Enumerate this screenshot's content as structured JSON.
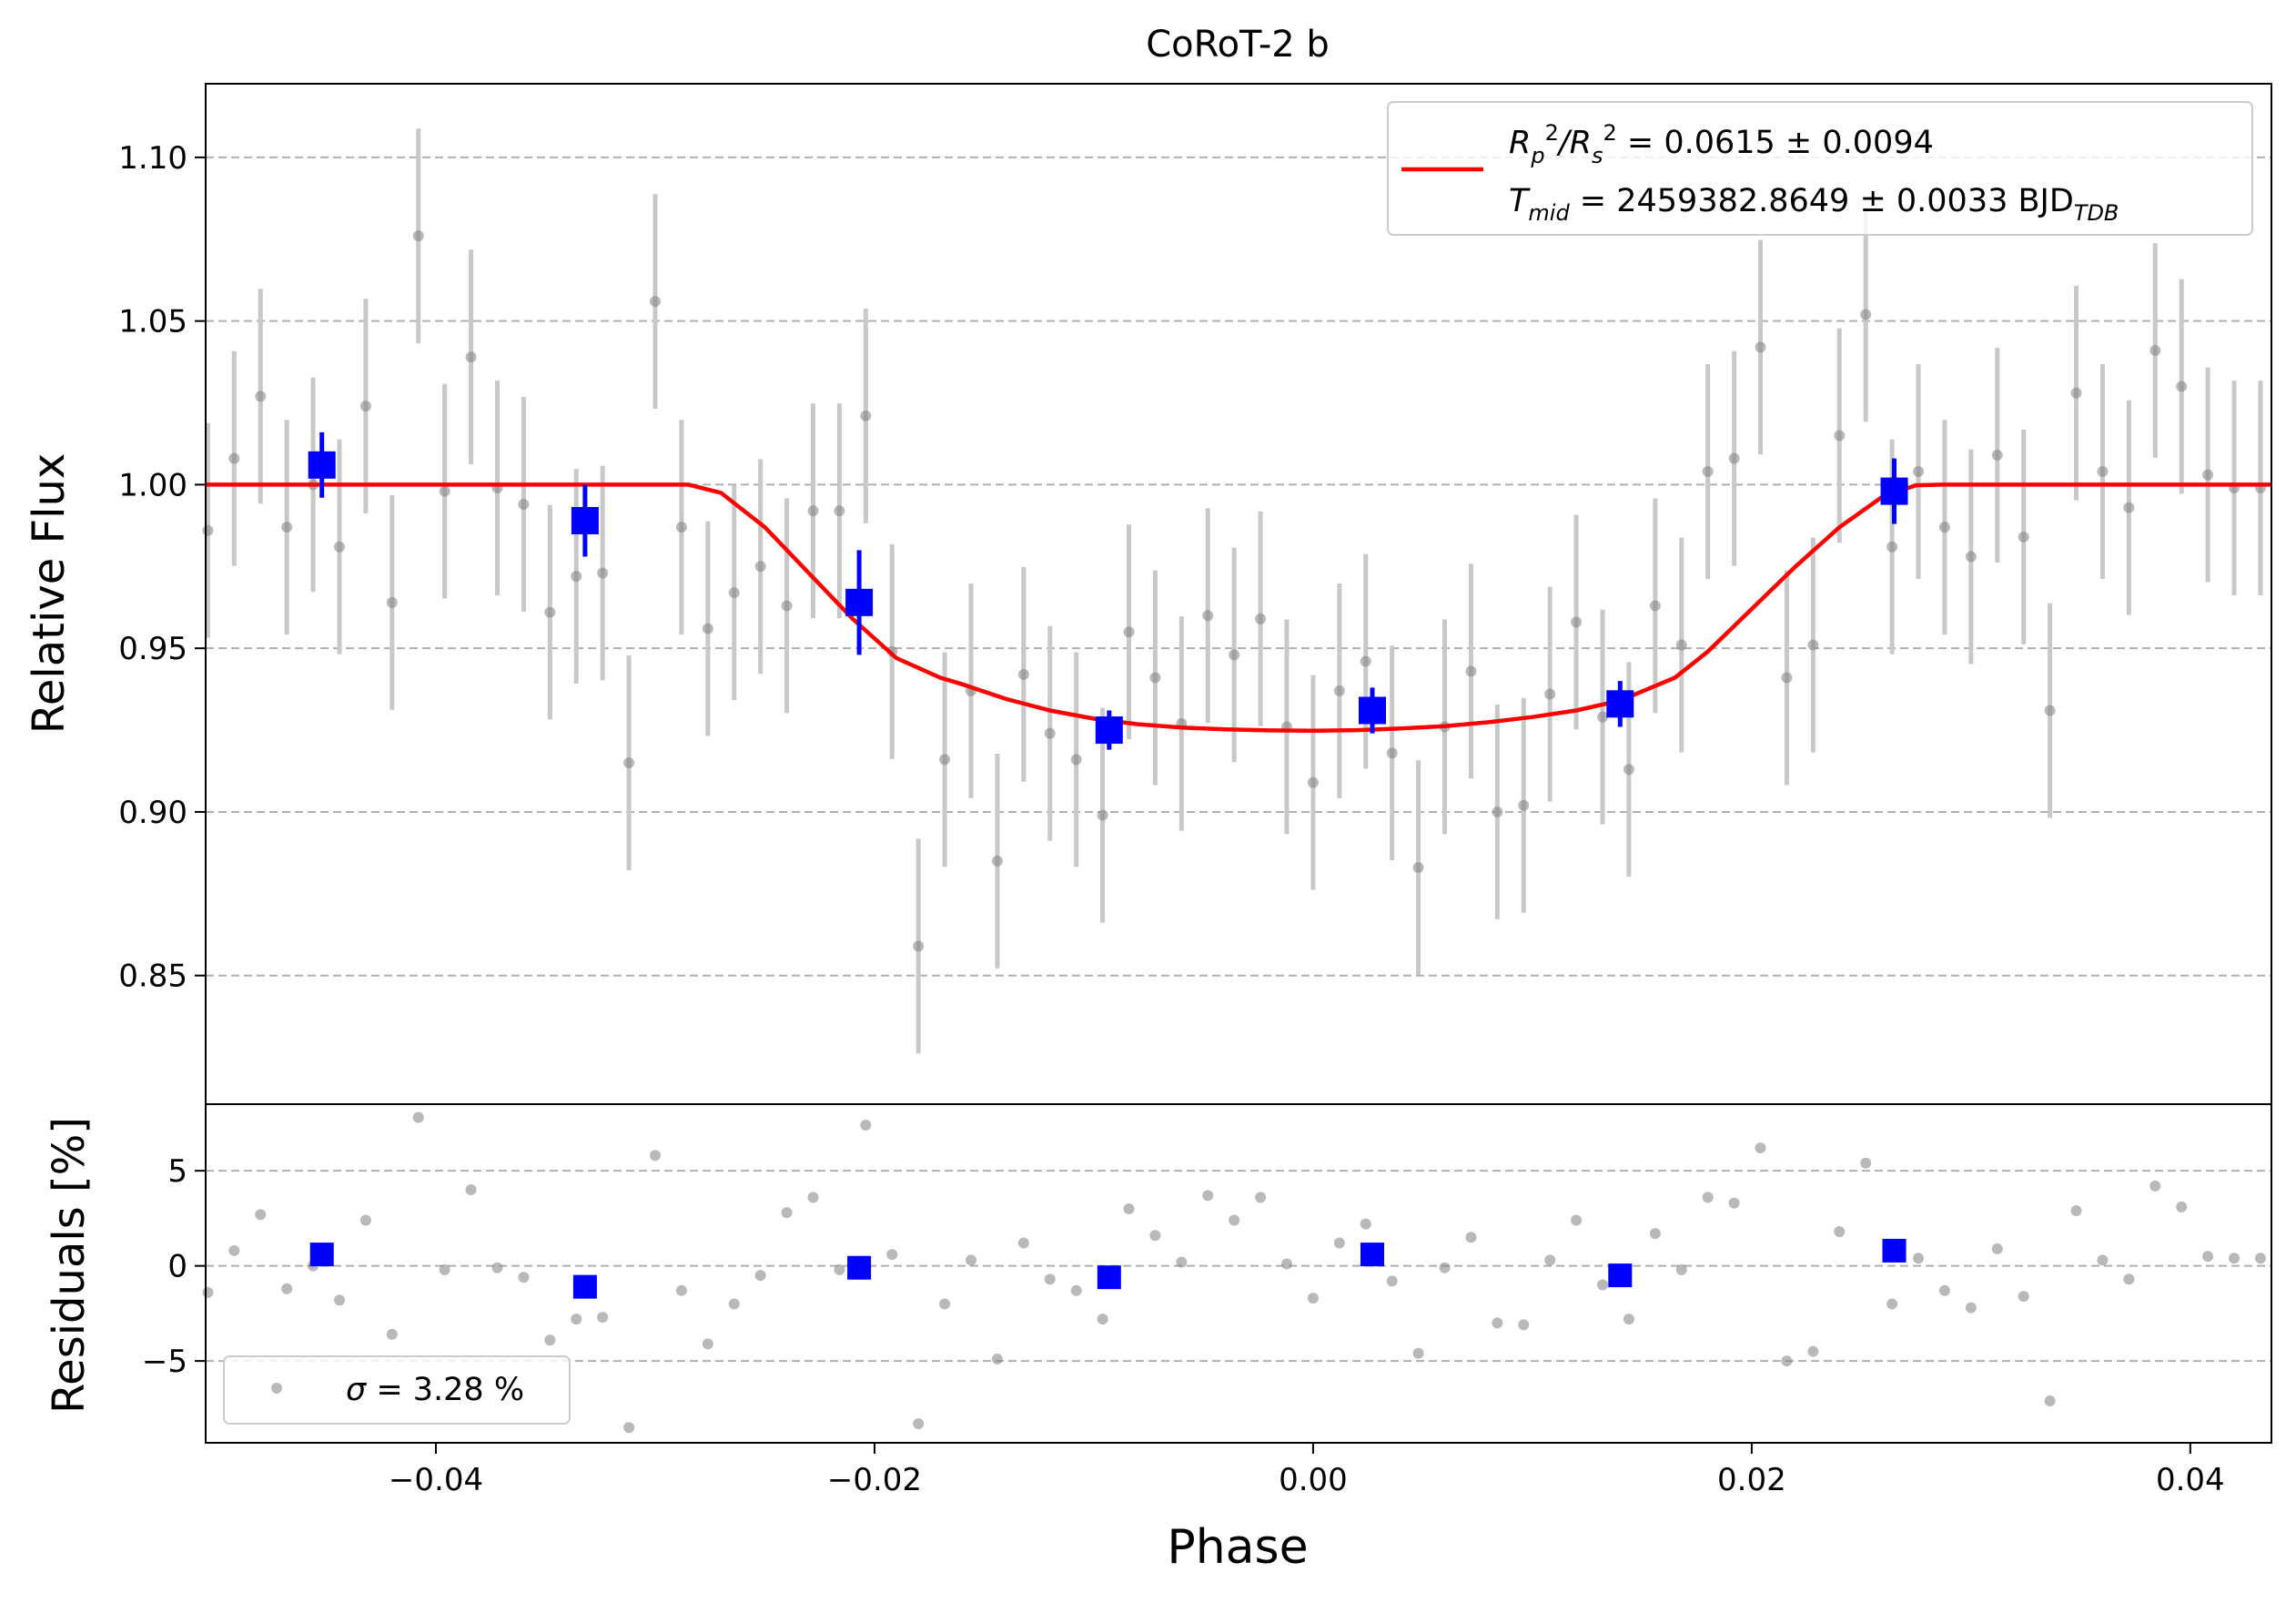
{
  "chart_data": [
    {
      "panel": "main",
      "type": "scatter",
      "title": "CoRoT-2 b",
      "xlabel": "",
      "ylabel": "Relative Flux",
      "xlim": [
        -0.0505,
        0.0437
      ],
      "ylim": [
        0.8107,
        1.1225
      ],
      "yticks": [
        0.85,
        0.9,
        0.95,
        1.0,
        1.05,
        1.1
      ],
      "ytick_labels": [
        "0.85",
        "0.90",
        "0.95",
        "1.00",
        "1.05",
        "1.10"
      ],
      "grid": "y-dashed",
      "legend": {
        "placement": "upper right",
        "line1": {
          "prefix": "R",
          "p_sub": "p",
          "p_sup": "2",
          "slash": "/R",
          "s_sub": "s",
          "s_sup": "2",
          "value": " = 0.0615 ± 0.0094"
        },
        "line2": {
          "prefix": "T",
          "sub": "mid",
          "value": " = 2459382.8649 ± 0.0033 BJD",
          "unit_sub": "TDB"
        }
      },
      "model": {
        "name": "transit model",
        "color": "#ff0000",
        "x": [
          -0.0505,
          -0.0285,
          -0.027,
          -0.025,
          -0.023,
          -0.021,
          -0.019,
          -0.017,
          -0.016,
          -0.014,
          -0.012,
          -0.01,
          -0.008,
          -0.006,
          -0.004,
          -0.002,
          0.0,
          0.002,
          0.004,
          0.006,
          0.008,
          0.01,
          0.012,
          0.014,
          0.0165,
          0.018,
          0.02,
          0.022,
          0.024,
          0.026,
          0.0275,
          0.0287,
          0.0437
        ],
        "y": [
          1.0,
          1.0,
          0.9975,
          0.987,
          0.973,
          0.959,
          0.947,
          0.941,
          0.939,
          0.9345,
          0.931,
          0.9285,
          0.9268,
          0.9258,
          0.9252,
          0.9249,
          0.9248,
          0.925,
          0.9255,
          0.9262,
          0.9274,
          0.929,
          0.931,
          0.934,
          0.941,
          0.949,
          0.962,
          0.975,
          0.987,
          0.9965,
          0.9998,
          1.0,
          1.0
        ]
      },
      "data_series": {
        "name": "data",
        "color": "#808080",
        "x": [
          -0.0504,
          -0.0492,
          -0.048,
          -0.0468,
          -0.0456,
          -0.0444,
          -0.0432,
          -0.042,
          -0.0408,
          -0.0396,
          -0.0384,
          -0.0372,
          -0.036,
          -0.0348,
          -0.0336,
          -0.0324,
          -0.0312,
          -0.03,
          -0.0288,
          -0.0276,
          -0.0264,
          -0.0252,
          -0.024,
          -0.0228,
          -0.0216,
          -0.0204,
          -0.0192,
          -0.018,
          -0.0168,
          -0.0156,
          -0.0144,
          -0.0132,
          -0.012,
          -0.0108,
          -0.0096,
          -0.0084,
          -0.0072,
          -0.006,
          -0.0048,
          -0.0036,
          -0.0024,
          -0.0012,
          0.0,
          0.0012,
          0.0024,
          0.0036,
          0.0048,
          0.006,
          0.0072,
          0.0084,
          0.0096,
          0.0108,
          0.012,
          0.0132,
          0.0144,
          0.0156,
          0.0168,
          0.018,
          0.0192,
          0.0204,
          0.0216,
          0.0228,
          0.024,
          0.0252,
          0.0264,
          0.0276,
          0.0288,
          0.03,
          0.0312,
          0.0324,
          0.0336,
          0.0348,
          0.036,
          0.0372,
          0.0384,
          0.0396,
          0.0408,
          0.042,
          0.0432
        ],
        "y": [
          0.986,
          1.008,
          1.027,
          0.987,
          1.0,
          0.981,
          1.024,
          0.964,
          1.076,
          0.998,
          1.039,
          0.999,
          0.994,
          0.961,
          0.972,
          0.973,
          0.915,
          1.056,
          0.987,
          0.956,
          0.967,
          0.975,
          0.963,
          0.992,
          0.992,
          1.021,
          0.949,
          0.859,
          0.916,
          0.937,
          0.885,
          0.942,
          0.924,
          0.916,
          0.899,
          0.955,
          0.941,
          0.927,
          0.96,
          0.948,
          0.959,
          0.926,
          0.909,
          0.937,
          0.946,
          0.918,
          0.883,
          0.926,
          0.943,
          0.9,
          0.902,
          0.936,
          0.958,
          0.929,
          0.913,
          0.963,
          0.951,
          1.004,
          1.008,
          1.042,
          0.941,
          0.951,
          1.015,
          1.052,
          0.981,
          1.004,
          0.987,
          0.978,
          1.009,
          0.984,
          0.931,
          1.028,
          1.004,
          0.993,
          1.041,
          1.03,
          1.003,
          0.999,
          0.999
        ],
        "yerr": 0.0328
      },
      "binned_series": {
        "name": "binned",
        "color": "#0000ff",
        "x": [
          -0.0452,
          -0.0332,
          -0.0207,
          -0.0093,
          0.0027,
          0.014,
          0.0265
        ],
        "y": [
          1.006,
          0.989,
          0.964,
          0.925,
          0.931,
          0.933,
          0.998
        ],
        "yerr": [
          0.01,
          0.011,
          0.016,
          0.006,
          0.007,
          0.007,
          0.01
        ]
      }
    },
    {
      "panel": "residuals",
      "type": "scatter",
      "xlabel": "Phase",
      "ylabel": "Residuals [%]",
      "xlim": [
        -0.0505,
        0.0437
      ],
      "ylim": [
        -9.3,
        8.5
      ],
      "yticks": [
        -5,
        0,
        5
      ],
      "ytick_labels": [
        "−5",
        "0",
        "5"
      ],
      "xticks": [
        -0.04,
        -0.02,
        0.0,
        0.02,
        0.04
      ],
      "xtick_labels": [
        "−0.04",
        "−0.02",
        "0.00",
        "0.02",
        "0.04"
      ],
      "grid": "y-dashed",
      "legend": {
        "placement": "lower left",
        "label_symbol": "σ",
        "label_value": " = 3.28 %"
      },
      "data_series": {
        "name": "residuals",
        "color": "#808080",
        "x": [
          -0.0504,
          -0.0492,
          -0.048,
          -0.0468,
          -0.0456,
          -0.0444,
          -0.0432,
          -0.042,
          -0.0408,
          -0.0396,
          -0.0384,
          -0.0372,
          -0.036,
          -0.0348,
          -0.0336,
          -0.0324,
          -0.0312,
          -0.03,
          -0.0288,
          -0.0276,
          -0.0264,
          -0.0252,
          -0.024,
          -0.0228,
          -0.0216,
          -0.0204,
          -0.0192,
          -0.018,
          -0.0168,
          -0.0156,
          -0.0144,
          -0.0132,
          -0.012,
          -0.0108,
          -0.0096,
          -0.0084,
          -0.0072,
          -0.006,
          -0.0048,
          -0.0036,
          -0.0024,
          -0.0012,
          0.0,
          0.0012,
          0.0024,
          0.0036,
          0.0048,
          0.006,
          0.0072,
          0.0084,
          0.0096,
          0.0108,
          0.012,
          0.0132,
          0.0144,
          0.0156,
          0.0168,
          0.018,
          0.0192,
          0.0204,
          0.0216,
          0.0228,
          0.024,
          0.0252,
          0.0264,
          0.0276,
          0.0288,
          0.03,
          0.0312,
          0.0324,
          0.0336,
          0.0348,
          0.036,
          0.0372,
          0.0384,
          0.0396,
          0.0408,
          0.042,
          0.0432
        ],
        "y": [
          -1.4,
          0.8,
          2.7,
          -1.2,
          0.0,
          -1.8,
          2.4,
          -3.6,
          7.8,
          -0.2,
          4.0,
          -0.1,
          -0.6,
          -3.9,
          -2.8,
          -2.7,
          -8.5,
          5.8,
          -1.3,
          -4.1,
          -2.0,
          -0.5,
          2.8,
          3.6,
          -0.2,
          7.4,
          0.6,
          -8.3,
          -2.0,
          0.3,
          -4.9,
          1.2,
          -0.7,
          -1.3,
          -2.8,
          3.0,
          1.6,
          0.2,
          3.7,
          2.4,
          3.6,
          0.1,
          -1.7,
          1.2,
          2.2,
          -0.8,
          -4.6,
          -0.1,
          1.5,
          -3.0,
          -3.1,
          0.3,
          2.4,
          -1.0,
          -2.8,
          1.7,
          -0.2,
          3.6,
          3.3,
          6.2,
          -5.0,
          -4.5,
          1.8,
          5.4,
          -2.0,
          0.4,
          -1.3,
          -2.2,
          0.9,
          -1.6,
          -7.1,
          2.9,
          0.3,
          -0.7,
          4.2,
          3.1,
          0.5,
          0.4,
          0.4
        ]
      },
      "binned_series": {
        "name": "binned residuals",
        "color": "#0000ff",
        "x": [
          -0.0452,
          -0.0332,
          -0.0207,
          -0.0093,
          0.0027,
          0.014,
          0.0265
        ],
        "y": [
          0.6,
          -1.1,
          -0.1,
          -0.6,
          0.6,
          -0.5,
          0.8
        ]
      }
    }
  ]
}
